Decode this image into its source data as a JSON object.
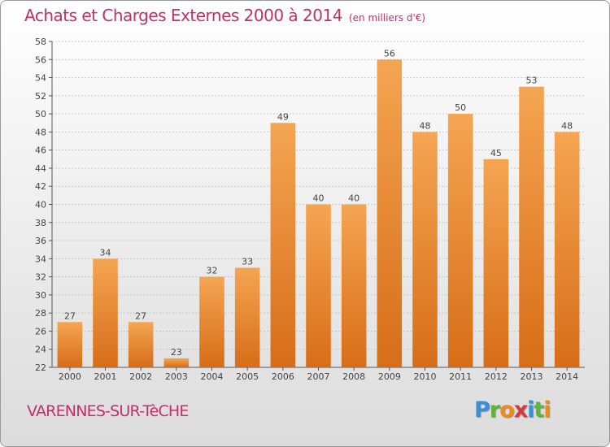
{
  "header": {
    "title": "Achats et Charges Externes 2000 à 2014",
    "subtitle": "(en milliers d'€)"
  },
  "footer": {
    "commune": "VARENNES-SUR-TèCHE",
    "logo_letters": [
      "P",
      "r",
      "o",
      "x",
      "i",
      "t",
      "i"
    ],
    "logo_colors": [
      "#3a8fd6",
      "#5fb53a",
      "#f08a1c",
      "#d63a3a",
      "#3a8fd6",
      "#5fb53a",
      "#f08a1c"
    ]
  },
  "colors": {
    "bar_top": "#f5a552",
    "bar_bottom": "#d76d18",
    "text": "#c0306a",
    "grid": "#c8c8c8"
  },
  "chart_data": {
    "type": "bar",
    "title": "Achats et Charges Externes 2000 à 2014",
    "subtitle": "(en milliers d'€)",
    "categories": [
      "2000",
      "2001",
      "2002",
      "2003",
      "2004",
      "2005",
      "2006",
      "2007",
      "2008",
      "2009",
      "2010",
      "2011",
      "2012",
      "2013",
      "2014"
    ],
    "values": [
      27,
      34,
      27,
      23,
      32,
      33,
      49,
      40,
      40,
      56,
      48,
      50,
      45,
      53,
      48
    ],
    "ylim": [
      22,
      58
    ],
    "yticks": [
      22,
      24,
      26,
      28,
      30,
      32,
      34,
      36,
      38,
      40,
      42,
      44,
      46,
      48,
      50,
      52,
      54,
      56,
      58
    ],
    "xlabel": "",
    "ylabel": "",
    "grid": true,
    "legend": "none"
  }
}
